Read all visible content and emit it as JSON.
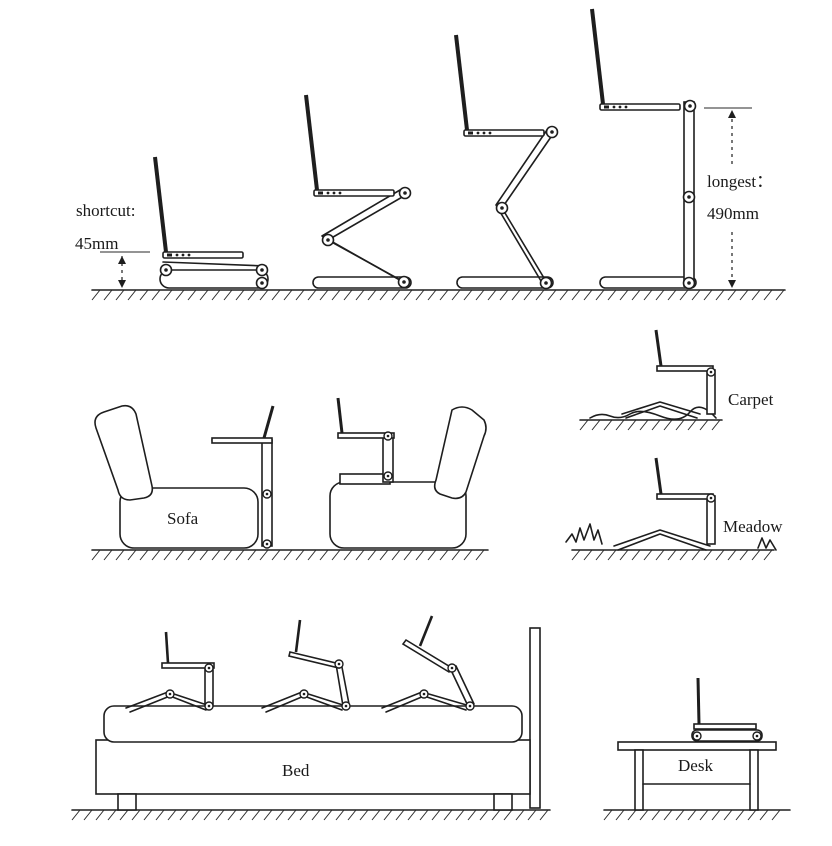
{
  "labels": {
    "shortcut_line1": "shortcut:",
    "shortcut_line2": "45mm",
    "longest_line1": "longest：",
    "longest_line2": "490mm",
    "sofa": "Sofa",
    "carpet": "Carpet",
    "meadow": "Meadow",
    "bed": "Bed",
    "desk": "Desk"
  },
  "colors": {
    "ink": "#1e1e1e",
    "background": "#ffffff"
  }
}
